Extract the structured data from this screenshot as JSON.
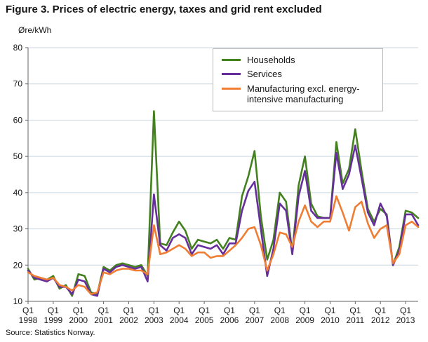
{
  "title": "Figure 3. Prices of electric energy, taxes and grid rent excluded",
  "y_axis_unit": "Øre/kWh",
  "source": "Source: Statistics Norway.",
  "chart_data": {
    "type": "line",
    "x_quarter_label": "Q1",
    "x_tick_years": [
      "1998",
      "1999",
      "2000",
      "2001",
      "2002",
      "2003",
      "2004",
      "2005",
      "2006",
      "2007",
      "2008",
      "2009",
      "2010",
      "2011",
      "2012",
      "2013"
    ],
    "x_tick_every": 4,
    "x_count": 63,
    "x_start": "1998 Q1",
    "x_end": "2013 Q3",
    "ylim": [
      10,
      80
    ],
    "yticks": [
      10,
      20,
      30,
      40,
      50,
      60,
      70,
      80
    ],
    "grid": "horizontal",
    "legend_position": "top-center",
    "grid_color": "#c9d6e2",
    "axis_color": "#666666",
    "text_color": "#161616",
    "series": [
      {
        "name": "Households",
        "color": "#43811e",
        "values": [
          19,
          16,
          16.5,
          16,
          17,
          13.5,
          14.5,
          11.5,
          17.5,
          17,
          12.5,
          12,
          19.5,
          18.5,
          20,
          20.5,
          20,
          19.5,
          20,
          17,
          62.5,
          26,
          25.5,
          29,
          32,
          29.5,
          24.5,
          27,
          26.5,
          26,
          27,
          24.5,
          27.5,
          27,
          39,
          44.5,
          51.5,
          33.5,
          21.5,
          27,
          40,
          37.5,
          23.5,
          42,
          50,
          37,
          33.5,
          33,
          33,
          54,
          42.5,
          46.5,
          57.5,
          46,
          35.5,
          32,
          35.5,
          34,
          20,
          25,
          35,
          34.5,
          33
        ]
      },
      {
        "name": "Services",
        "color": "#662e9b",
        "values": [
          18.5,
          16.5,
          16,
          15.5,
          16.5,
          14,
          14,
          12,
          16,
          15.5,
          12,
          11.5,
          19,
          18,
          19.5,
          20,
          19.5,
          19,
          19.5,
          15.5,
          39.5,
          25.5,
          24,
          27.5,
          28.5,
          27.5,
          23,
          25.5,
          25,
          24.5,
          25.5,
          23,
          26,
          26,
          35,
          40.5,
          43,
          30,
          17,
          24.5,
          37,
          35,
          23,
          39,
          46,
          35,
          33,
          33,
          33,
          51,
          41,
          45,
          53,
          44,
          34.5,
          31,
          37,
          33.5,
          20,
          24,
          34,
          34,
          31
        ]
      },
      {
        "name": "Manufacturing excl. energy-intensive manufacturing",
        "color": "#ef7d33",
        "values": [
          18,
          17,
          16.5,
          16,
          16.5,
          14.5,
          14,
          13,
          14.5,
          14,
          12,
          12.5,
          18,
          17.5,
          18.5,
          19,
          19,
          18.5,
          18.5,
          17.5,
          31,
          23,
          23.5,
          24.5,
          25.5,
          24.5,
          22.5,
          23.5,
          23.5,
          22,
          22.5,
          22.5,
          24,
          25.5,
          27.5,
          30,
          30.5,
          25.5,
          18.5,
          23,
          29,
          28.5,
          25,
          32,
          36.5,
          32,
          30.5,
          32,
          32,
          39,
          34.5,
          29.5,
          36,
          37.5,
          31.5,
          27.5,
          30,
          31,
          20.5,
          23,
          31,
          32,
          30.5
        ]
      }
    ]
  }
}
